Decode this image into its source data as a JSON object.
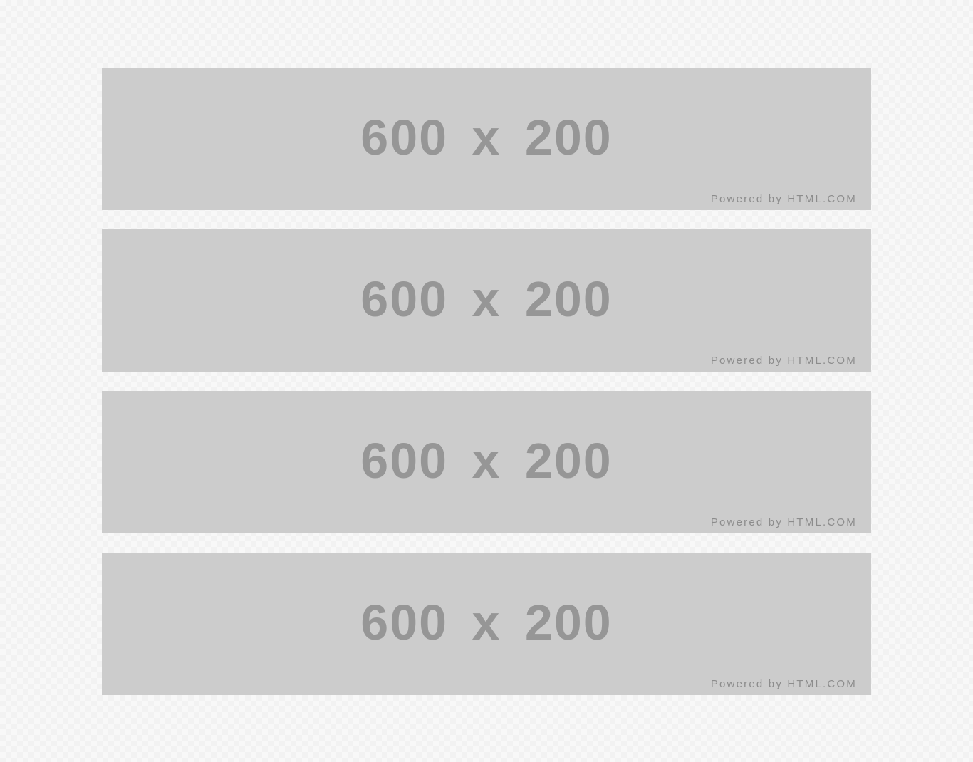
{
  "page": {
    "background_colors": [
      "#f8f8f8",
      "#f2f2f2"
    ]
  },
  "placeholders": [
    {
      "size_label": "600 x 200",
      "credit": "Powered by HTML.COM"
    },
    {
      "size_label": "600 x 200",
      "credit": "Powered by HTML.COM"
    },
    {
      "size_label": "600 x 200",
      "credit": "Powered by HTML.COM"
    },
    {
      "size_label": "600 x 200",
      "credit": "Powered by HTML.COM"
    }
  ],
  "colors": {
    "placeholder_fill": "#cccccc",
    "placeholder_text": "#969696",
    "credit_text": "#8c8c8c"
  }
}
